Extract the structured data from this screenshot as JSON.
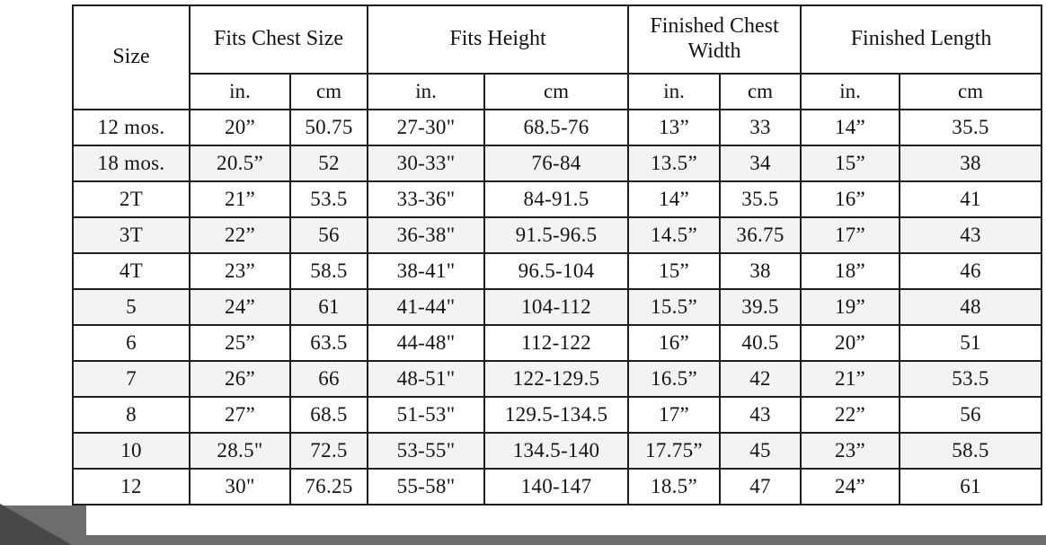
{
  "colors": {
    "grid": "#1d1d1d",
    "alt_row": "#f3f3f3",
    "overlay_gray": "#6d6d6d",
    "overlay_dark": "#484848",
    "background": "#ffffff"
  },
  "chart_data": {
    "type": "table",
    "columns": [
      {
        "group": "Size"
      },
      {
        "group": "Fits Chest Size",
        "units": [
          "in.",
          "cm"
        ]
      },
      {
        "group": "Fits Height",
        "units": [
          "in.",
          "cm"
        ]
      },
      {
        "group": "Finished Chest Width",
        "units": [
          "in.",
          "cm"
        ]
      },
      {
        "group": "Finished Length",
        "units": [
          "in.",
          "cm"
        ]
      }
    ],
    "sub_headers": [
      "in.",
      "cm",
      "in.",
      "cm",
      "in.",
      "cm",
      "in.",
      "cm"
    ],
    "rows": [
      [
        "12 mos.",
        "20”",
        "50.75",
        "27-30\"",
        "68.5-76",
        "13”",
        "33",
        "14”",
        "35.5"
      ],
      [
        "18 mos.",
        "20.5”",
        "52",
        "30-33\"",
        "76-84",
        "13.5”",
        "34",
        "15”",
        "38"
      ],
      [
        "2T",
        "21”",
        "53.5",
        "33-36\"",
        "84-91.5",
        "14”",
        "35.5",
        "16”",
        "41"
      ],
      [
        "3T",
        "22”",
        "56",
        "36-38\"",
        "91.5-96.5",
        "14.5”",
        "36.75",
        "17”",
        "43"
      ],
      [
        "4T",
        "23”",
        "58.5",
        "38-41\"",
        "96.5-104",
        "15”",
        "38",
        "18”",
        "46"
      ],
      [
        "5",
        "24”",
        "61",
        "41-44\"",
        "104-112",
        "15.5”",
        "39.5",
        "19”",
        "48"
      ],
      [
        "6",
        "25”",
        "63.5",
        "44-48\"",
        "112-122",
        "16”",
        "40.5",
        "20”",
        "51"
      ],
      [
        "7",
        "26”",
        "66",
        "48-51\"",
        "122-129.5",
        "16.5”",
        "42",
        "21”",
        "53.5"
      ],
      [
        "8",
        "27”",
        "68.5",
        "51-53\"",
        "129.5-134.5",
        "17”",
        "43",
        "22”",
        "56"
      ],
      [
        "10",
        "28.5\"",
        "72.5",
        "53-55\"",
        "134.5-140",
        "17.75”",
        "45",
        "23”",
        "58.5"
      ],
      [
        "12",
        "30\"",
        "76.25",
        "55-58\"",
        "140-147",
        "18.5”",
        "47",
        "24”",
        "61"
      ]
    ]
  }
}
